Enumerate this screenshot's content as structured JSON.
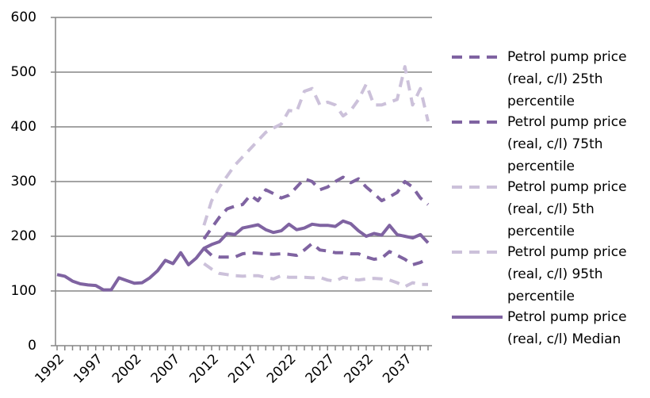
{
  "chart_data": {
    "type": "line",
    "x": [
      1992,
      1993,
      1994,
      1995,
      1996,
      1997,
      1998,
      1999,
      2000,
      2001,
      2002,
      2003,
      2004,
      2005,
      2006,
      2007,
      2008,
      2009,
      2010,
      2011,
      2012,
      2013,
      2014,
      2015,
      2016,
      2017,
      2018,
      2019,
      2020,
      2021,
      2022,
      2023,
      2024,
      2025,
      2026,
      2027,
      2028,
      2029,
      2030,
      2031,
      2032,
      2033,
      2034,
      2035,
      2036,
      2037,
      2038,
      2039,
      2040
    ],
    "xticks": [
      1992,
      1997,
      2002,
      2007,
      2012,
      2017,
      2022,
      2027,
      2032,
      2037
    ],
    "xlim": [
      1992,
      2040
    ],
    "ylim": [
      0,
      600
    ],
    "yticks": [
      0,
      100,
      200,
      300,
      400,
      500,
      600
    ],
    "grid": true,
    "series": [
      {
        "name": "Petrol pump price (real, c/l) 25th percentile",
        "color": "#7f63a1",
        "dash": true,
        "values": [
          null,
          null,
          null,
          null,
          null,
          null,
          null,
          null,
          null,
          null,
          null,
          null,
          null,
          null,
          null,
          null,
          null,
          null,
          null,
          178,
          165,
          162,
          162,
          162,
          168,
          170,
          169,
          168,
          167,
          168,
          167,
          165,
          175,
          187,
          175,
          173,
          170,
          170,
          168,
          168,
          162,
          158,
          160,
          172,
          165,
          158,
          148,
          152,
          160
        ]
      },
      {
        "name": "Petrol pump price (real, c/l) 75th percentile",
        "color": "#7f63a1",
        "dash": true,
        "values": [
          null,
          null,
          null,
          null,
          null,
          null,
          null,
          null,
          null,
          null,
          null,
          null,
          null,
          null,
          null,
          null,
          null,
          null,
          null,
          195,
          215,
          235,
          250,
          255,
          258,
          275,
          265,
          285,
          278,
          270,
          275,
          290,
          305,
          300,
          285,
          290,
          300,
          308,
          298,
          305,
          290,
          278,
          265,
          272,
          280,
          300,
          290,
          270,
          258
        ]
      },
      {
        "name": "Petrol pump price (real, c/l) 5th percentile",
        "color": "#ccc1da",
        "dash": true,
        "values": [
          null,
          null,
          null,
          null,
          null,
          null,
          null,
          null,
          null,
          null,
          null,
          null,
          null,
          null,
          null,
          null,
          null,
          null,
          null,
          150,
          140,
          132,
          130,
          128,
          127,
          128,
          128,
          125,
          122,
          128,
          125,
          125,
          125,
          124,
          125,
          120,
          118,
          125,
          122,
          120,
          122,
          123,
          122,
          120,
          115,
          108,
          115,
          112,
          112
        ]
      },
      {
        "name": "Petrol pump price (real, c/l) 95th percentile",
        "color": "#ccc1da",
        "dash": true,
        "values": [
          null,
          null,
          null,
          null,
          null,
          null,
          null,
          null,
          null,
          null,
          null,
          null,
          null,
          null,
          null,
          null,
          null,
          null,
          null,
          220,
          265,
          290,
          310,
          330,
          345,
          360,
          375,
          390,
          398,
          405,
          430,
          428,
          465,
          470,
          440,
          445,
          440,
          420,
          430,
          450,
          478,
          440,
          440,
          445,
          450,
          510,
          440,
          470,
          410
        ]
      },
      {
        "name": "Petrol pump price (real, c/l) Median",
        "color": "#7f63a1",
        "dash": false,
        "values": [
          130,
          127,
          118,
          113,
          111,
          110,
          102,
          102,
          124,
          119,
          114,
          115,
          124,
          137,
          156,
          150,
          170,
          148,
          160,
          178,
          185,
          190,
          205,
          203,
          215,
          218,
          221,
          212,
          207,
          210,
          222,
          212,
          215,
          222,
          220,
          220,
          218,
          228,
          223,
          210,
          200,
          205,
          202,
          220,
          203,
          200,
          197,
          203,
          188
        ]
      }
    ]
  }
}
